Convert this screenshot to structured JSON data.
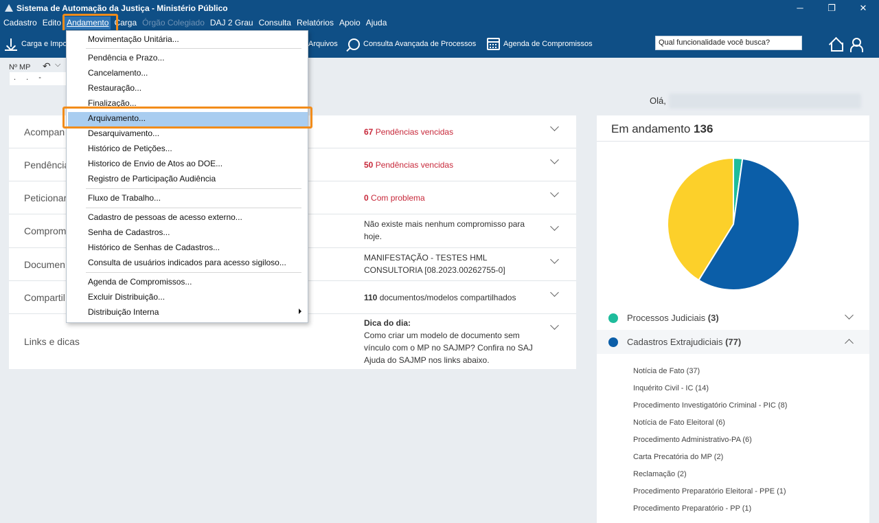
{
  "window": {
    "title": "Sistema de Automação da Justiça - Ministério Público",
    "minimize": "─",
    "restore": "❐",
    "close": "✕"
  },
  "menu": [
    "Cadastro",
    "Edito",
    "Andamento",
    "Carga",
    "Órgão Colegiado",
    "DAJ 2 Grau",
    "Consulta",
    "Relatórios",
    "Apoio",
    "Ajuda"
  ],
  "toolbar": {
    "carga": "Carga e Impo",
    "arquivos": "Arquivos",
    "consulta_avancada": "Consulta Avançada de Processos",
    "agenda": "Agenda de Compromissos",
    "search_placeholder": "Qual funcionalidade você busca?"
  },
  "mp": {
    "label": "Nº MP",
    "undo_icon": "↶",
    "chevron": "⌵",
    "value": ". . -"
  },
  "greeting": "Olá,",
  "rows": [
    {
      "label": "Acompan",
      "num": "67",
      "text": " Pendências vencidas",
      "red": true
    },
    {
      "label": "Pendência",
      "num": "50",
      "text": " Pendências vencidas",
      "red": true
    },
    {
      "label": "Peticionar",
      "num": "0",
      "text": " Com problema",
      "red": true
    },
    {
      "label": "Comprom",
      "num": "",
      "text": "Não existe mais nenhum compromisso para hoje.",
      "red": false
    },
    {
      "label": "Documen",
      "num": "",
      "text": "MANIFESTAÇÃO - TESTES HML CONSULTORIA [08.2023.00262755-0]",
      "red": false
    },
    {
      "label": "Compartil",
      "num": "110",
      "text": " documentos/modelos compartilhados",
      "red": false
    },
    {
      "label": "Links e dicas",
      "num": "Dica do dia:",
      "text": "Como criar um modelo de documento sem vínculo com o MP no SAJMP? Confira no SAJ Ajuda do SAJMP nos links abaixo.",
      "red": false
    }
  ],
  "dropdown": [
    "Movimentação Unitária...",
    "Pendência e Prazo...",
    "Cancelamento...",
    "Restauração...",
    "Finalização...",
    "Arquivamento...",
    "Desarquivamento...",
    "Histórico de Petições...",
    "Historico de Envio de Atos ao DOE...",
    "Registro de Participação Audiência",
    "Fluxo de Trabalho...",
    "Cadastro de pessoas de acesso externo...",
    "Senha de Cadastros...",
    "Histórico de Senhas de Cadastros...",
    "Consulta de usuários indicados para acesso sigiloso...",
    "Agenda de Compromissos...",
    "Excluir Distribuição...",
    "Distribuição Interna"
  ],
  "right_panel": {
    "title": "Em andamento",
    "total": "136",
    "legend": [
      {
        "label": "Processos Judiciais",
        "count": "(3)",
        "color": "#1ebc9c"
      },
      {
        "label": "Cadastros Extrajudiciais",
        "count": "(77)",
        "color": "#0b5ea8"
      }
    ],
    "sub_items": [
      "Notícia de Fato (37)",
      "Inquérito Civil - IC (14)",
      "Procedimento Investigatório Criminal - PIC (8)",
      "Notícia de Fato Eleitoral (6)",
      "Procedimento Administrativo-PA (6)",
      "Carta Precatória do MP (2)",
      "Reclamação (2)",
      "Procedimento Preparatório Eleitoral - PPE (1)",
      "Procedimento Preparatório - PP (1)"
    ]
  },
  "chart_data": {
    "type": "pie",
    "slices": [
      {
        "value": 3,
        "color": "#1ebc9c"
      },
      {
        "value": 77,
        "color": "#0b5ea8"
      },
      {
        "value": 56,
        "color": "#fcd02a"
      }
    ]
  }
}
